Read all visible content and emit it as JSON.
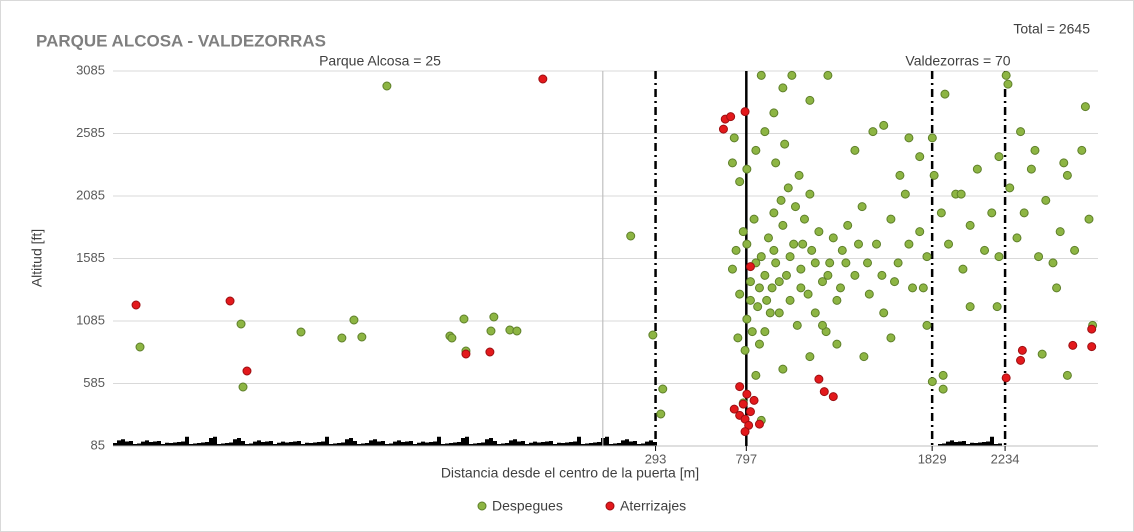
{
  "chart_data": {
    "type": "scatter",
    "title": "PARQUE ALCOSA - VALDEZORRAS",
    "annotations": [
      "Total = 2645",
      "Parque Alcosa = 25",
      "Valdezorras = 70"
    ],
    "x_label": "Distancia desde el centro de la puerta [m]",
    "y_label": "Altitud [ft]",
    "xlim": [
      -2720,
      2750
    ],
    "ylim": [
      85,
      3085
    ],
    "yticks": [
      85,
      585,
      1085,
      1585,
      2085,
      2585,
      3085
    ],
    "xticks": [
      293,
      797,
      1829,
      2234
    ],
    "reference_lines": [
      {
        "x": 0,
        "color": "#bfbfbf",
        "style": "solid"
      },
      {
        "x": 293,
        "color": "#000000",
        "style": "dashdot"
      },
      {
        "x": 797,
        "color": "#000000",
        "style": "solid"
      },
      {
        "x": 1829,
        "color": "#000000",
        "style": "dashdot"
      },
      {
        "x": 2234,
        "color": "#000000",
        "style": "dashdot"
      }
    ],
    "grid": true,
    "legend": "bottom",
    "series": [
      {
        "name": "Despegues",
        "color": "#8db543",
        "x": [
          -2570,
          -1998,
          -2009,
          -1676,
          -1199,
          -1449,
          -1382,
          -1338,
          -849,
          -838,
          -771,
          -760,
          -621,
          -605,
          -516,
          -477,
          155,
          278,
          333,
          322,
          720,
          740,
          760,
          780,
          800,
          820,
          840,
          860,
          880,
          900,
          920,
          940,
          960,
          980,
          1000,
          1020,
          1040,
          1060,
          1080,
          1100,
          1120,
          1140,
          1160,
          1180,
          1200,
          1220,
          1240,
          1260,
          1280,
          1300,
          750,
          790,
          830,
          870,
          910,
          950,
          990,
          1030,
          1070,
          1110,
          760,
          800,
          850,
          900,
          950,
          1000,
          1050,
          1150,
          1250,
          880,
          960,
          1010,
          1090,
          1150,
          1330,
          1360,
          1400,
          1440,
          1480,
          1520,
          1560,
          1600,
          1640,
          1680,
          1720,
          1760,
          1800,
          1840,
          1880,
          1920,
          1960,
          2000,
          2040,
          2080,
          2120,
          2160,
          2200,
          2260,
          2300,
          2340,
          2380,
          2420,
          2460,
          2500,
          2540,
          2580,
          2620,
          2660,
          2700,
          2720,
          2680,
          2580,
          1400,
          1500,
          1560,
          1700,
          1830,
          1760,
          1650,
          1900,
          1990,
          2200,
          2320,
          2400,
          2560,
          720,
          730,
          2240,
          2250,
          1890,
          1800,
          1450,
          1600,
          1300,
          1150,
          1000,
          850,
          780,
          880,
          1220,
          1830,
          1890,
          2040,
          2190,
          2520,
          2440,
          800,
          850,
          900,
          950,
          820,
          870,
          930,
          980,
          1040,
          1100,
          1180,
          1250,
          1320,
          1350,
          1420,
          1470,
          1550,
          1620,
          1700,
          1780
        ],
        "values": [
          877,
          557,
          1061,
          997,
          2965,
          949,
          1093,
          957,
          965,
          949,
          1101,
          845,
          1005,
          1117,
          1013,
          1005,
          1765,
          973,
          541,
          341,
          1500,
          1650,
          1300,
          1800,
          1100,
          1400,
          1900,
          1200,
          1600,
          1000,
          1750,
          1350,
          1550,
          1150,
          1850,
          1450,
          1250,
          1700,
          1050,
          1500,
          1900,
          1300,
          1650,
          1150,
          1800,
          1400,
          1000,
          1550,
          1750,
          1250,
          950,
          850,
          1000,
          900,
          1250,
          1950,
          2050,
          2150,
          2000,
          1700,
          2200,
          2300,
          2450,
          2600,
          2750,
          2950,
          3050,
          2850,
          3050,
          3050,
          2350,
          2500,
          2250,
          2100,
          1650,
          1850,
          1450,
          2000,
          1300,
          1700,
          1150,
          1900,
          1550,
          2100,
          1350,
          1800,
          1600,
          2250,
          1950,
          1700,
          2100,
          1500,
          1850,
          2300,
          1650,
          1950,
          1600,
          2150,
          1750,
          1950,
          2300,
          1600,
          2050,
          1550,
          1800,
          2250,
          1650,
          2450,
          1900,
          1050,
          2800,
          650,
          2450,
          2600,
          2650,
          2550,
          2550,
          2400,
          2250,
          2900,
          2100,
          2400,
          2600,
          2450,
          2350,
          2350,
          2550,
          3050,
          2980,
          650,
          1050,
          800,
          950,
          900,
          800,
          700,
          650,
          430,
          290,
          1050,
          600,
          540,
          1200,
          1200,
          1350,
          820,
          1700,
          1550,
          1450,
          1650,
          1250,
          1350,
          1150,
          1400,
          1600,
          1350,
          1550,
          1450,
          1350,
          1550,
          1700,
          1550,
          1450,
          1400,
          1700,
          1350
        ]
      },
      {
        "name": "Aterrizajes",
        "color": "#e3191c",
        "x": [
          -2592,
          -2070,
          -1976,
          -760,
          -627,
          -333,
          680,
          710,
          670,
          790,
          820,
          730,
          760,
          790,
          820,
          780,
          800,
          840,
          760,
          810,
          870,
          790,
          1200,
          1230,
          1280,
          2240,
          2320,
          2330,
          2610,
          2715,
          2715
        ],
        "values": [
          1213,
          1245,
          685,
          821,
          837,
          3021,
          2700,
          2720,
          2620,
          2760,
          1520,
          380,
          330,
          300,
          360,
          420,
          500,
          450,
          560,
          250,
          260,
          200,
          620,
          520,
          480,
          630,
          770,
          850,
          890,
          880,
          1020
        ]
      }
    ]
  }
}
